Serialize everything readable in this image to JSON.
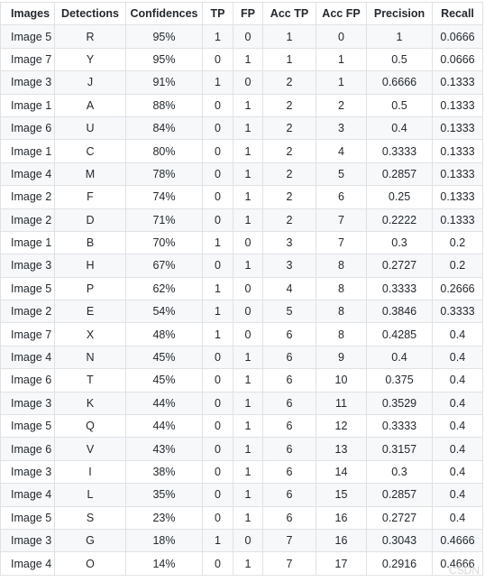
{
  "table": {
    "headers": [
      "Images",
      "Detections",
      "Confidences",
      "TP",
      "FP",
      "Acc TP",
      "Acc FP",
      "Precision",
      "Recall"
    ],
    "rows": [
      [
        "Image 5",
        "R",
        "95%",
        "1",
        "0",
        "1",
        "0",
        "1",
        "0.0666"
      ],
      [
        "Image 7",
        "Y",
        "95%",
        "0",
        "1",
        "1",
        "1",
        "0.5",
        "0.0666"
      ],
      [
        "Image 3",
        "J",
        "91%",
        "1",
        "0",
        "2",
        "1",
        "0.6666",
        "0.1333"
      ],
      [
        "Image 1",
        "A",
        "88%",
        "0",
        "1",
        "2",
        "2",
        "0.5",
        "0.1333"
      ],
      [
        "Image 6",
        "U",
        "84%",
        "0",
        "1",
        "2",
        "3",
        "0.4",
        "0.1333"
      ],
      [
        "Image 1",
        "C",
        "80%",
        "0",
        "1",
        "2",
        "4",
        "0.3333",
        "0.1333"
      ],
      [
        "Image 4",
        "M",
        "78%",
        "0",
        "1",
        "2",
        "5",
        "0.2857",
        "0.1333"
      ],
      [
        "Image 2",
        "F",
        "74%",
        "0",
        "1",
        "2",
        "6",
        "0.25",
        "0.1333"
      ],
      [
        "Image 2",
        "D",
        "71%",
        "0",
        "1",
        "2",
        "7",
        "0.2222",
        "0.1333"
      ],
      [
        "Image 1",
        "B",
        "70%",
        "1",
        "0",
        "3",
        "7",
        "0.3",
        "0.2"
      ],
      [
        "Image 3",
        "H",
        "67%",
        "0",
        "1",
        "3",
        "8",
        "0.2727",
        "0.2"
      ],
      [
        "Image 5",
        "P",
        "62%",
        "1",
        "0",
        "4",
        "8",
        "0.3333",
        "0.2666"
      ],
      [
        "Image 2",
        "E",
        "54%",
        "1",
        "0",
        "5",
        "8",
        "0.3846",
        "0.3333"
      ],
      [
        "Image 7",
        "X",
        "48%",
        "1",
        "0",
        "6",
        "8",
        "0.4285",
        "0.4"
      ],
      [
        "Image 4",
        "N",
        "45%",
        "0",
        "1",
        "6",
        "9",
        "0.4",
        "0.4"
      ],
      [
        "Image 6",
        "T",
        "45%",
        "0",
        "1",
        "6",
        "10",
        "0.375",
        "0.4"
      ],
      [
        "Image 3",
        "K",
        "44%",
        "0",
        "1",
        "6",
        "11",
        "0.3529",
        "0.4"
      ],
      [
        "Image 5",
        "Q",
        "44%",
        "0",
        "1",
        "6",
        "12",
        "0.3333",
        "0.4"
      ],
      [
        "Image 6",
        "V",
        "43%",
        "0",
        "1",
        "6",
        "13",
        "0.3157",
        "0.4"
      ],
      [
        "Image 3",
        "I",
        "38%",
        "0",
        "1",
        "6",
        "14",
        "0.3",
        "0.4"
      ],
      [
        "Image 4",
        "L",
        "35%",
        "0",
        "1",
        "6",
        "15",
        "0.2857",
        "0.4"
      ],
      [
        "Image 5",
        "S",
        "23%",
        "0",
        "1",
        "6",
        "16",
        "0.2727",
        "0.4"
      ],
      [
        "Image 3",
        "G",
        "18%",
        "1",
        "0",
        "7",
        "16",
        "0.3043",
        "0.4666"
      ],
      [
        "Image 4",
        "O",
        "14%",
        "0",
        "1",
        "7",
        "17",
        "0.2916",
        "0.4666"
      ]
    ]
  },
  "watermark_text": "CSDN"
}
